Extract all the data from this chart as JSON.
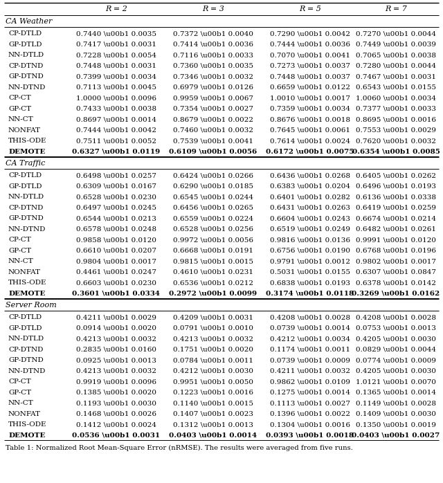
{
  "col_headers": [
    "",
    "R = 2",
    "R = 3",
    "R = 5",
    "R = 7"
  ],
  "sections": [
    {
      "name": "CA Weather",
      "rows": [
        [
          "CP-DTLD",
          "0.7440 \\u00b1 0.0035",
          "0.7372 \\u00b1 0.0040",
          "0.7290 \\u00b1 0.0042",
          "0.7270 \\u00b1 0.0044"
        ],
        [
          "GP-DTLD",
          "0.7417 \\u00b1 0.0031",
          "0.7414 \\u00b1 0.0036",
          "0.7444 \\u00b1 0.0036",
          "0.7449 \\u00b1 0.0039"
        ],
        [
          "NN-DTLD",
          "0.7228 \\u00b1 0.0054",
          "0.7116 \\u00b1 0.0033",
          "0.7070 \\u00b1 0.0041",
          "0.7065 \\u00b1 0.0038"
        ],
        [
          "CP-DTND",
          "0.7448 \\u00b1 0.0031",
          "0.7360 \\u00b1 0.0035",
          "0.7273 \\u00b1 0.0037",
          "0.7280 \\u00b1 0.0044"
        ],
        [
          "GP-DTND",
          "0.7399 \\u00b1 0.0034",
          "0.7346 \\u00b1 0.0032",
          "0.7448 \\u00b1 0.0037",
          "0.7467 \\u00b1 0.0031"
        ],
        [
          "NN-DTND",
          "0.7113 \\u00b1 0.0045",
          "0.6979 \\u00b1 0.0126",
          "0.6659 \\u00b1 0.0122",
          "0.6543 \\u00b1 0.0155"
        ],
        [
          "CP-CT",
          "1.0000 \\u00b1 0.0096",
          "0.9959 \\u00b1 0.0067",
          "1.0010 \\u00b1 0.0017",
          "1.0060 \\u00b1 0.0034"
        ],
        [
          "GP-CT",
          "0.7433 \\u00b1 0.0038",
          "0.7354 \\u00b1 0.0027",
          "0.7359 \\u00b1 0.0034",
          "0.7377 \\u00b1 0.0033"
        ],
        [
          "NN-CT",
          "0.8697 \\u00b1 0.0014",
          "0.8679 \\u00b1 0.0022",
          "0.8676 \\u00b1 0.0018",
          "0.8695 \\u00b1 0.0016"
        ],
        [
          "NONFAT",
          "0.7444 \\u00b1 0.0042",
          "0.7460 \\u00b1 0.0032",
          "0.7645 \\u00b1 0.0061",
          "0.7553 \\u00b1 0.0029"
        ],
        [
          "THIS-ODE",
          "0.7511 \\u00b1 0.0052",
          "0.7539 \\u00b1 0.0041",
          "0.7614 \\u00b1 0.0024",
          "0.7620 \\u00b1 0.0032"
        ],
        [
          "DEMOTE",
          "0.6327 \\u00b1 0.0119",
          "0.6109 \\u00b1 0.0056",
          "0.6172 \\u00b1 0.0075",
          "0.6354 \\u00b1 0.0085"
        ]
      ],
      "bold_row": "DEMOTE"
    },
    {
      "name": "CA Traffic",
      "rows": [
        [
          "CP-DTLD",
          "0.6498 \\u00b1 0.0257",
          "0.6424 \\u00b1 0.0266",
          "0.6436 \\u00b1 0.0268",
          "0.6405 \\u00b1 0.0262"
        ],
        [
          "GP-DTLD",
          "0.6309 \\u00b1 0.0167",
          "0.6290 \\u00b1 0.0185",
          "0.6383 \\u00b1 0.0204",
          "0.6496 \\u00b1 0.0193"
        ],
        [
          "NN-DTLD",
          "0.6528 \\u00b1 0.0230",
          "0.6545 \\u00b1 0.0244",
          "0.6401 \\u00b1 0.0282",
          "0.6136 \\u00b1 0.0338"
        ],
        [
          "CP-DTND",
          "0.6497 \\u00b1 0.0245",
          "0.6456 \\u00b1 0.0265",
          "0.6431 \\u00b1 0.0263",
          "0.6419 \\u00b1 0.0259"
        ],
        [
          "GP-DTND",
          "0.6544 \\u00b1 0.0213",
          "0.6559 \\u00b1 0.0224",
          "0.6604 \\u00b1 0.0243",
          "0.6674 \\u00b1 0.0214"
        ],
        [
          "NN-DTND",
          "0.6578 \\u00b1 0.0248",
          "0.6528 \\u00b1 0.0256",
          "0.6519 \\u00b1 0.0249",
          "0.6482 \\u00b1 0.0261"
        ],
        [
          "CP-CT",
          "0.9858 \\u00b1 0.0120",
          "0.9972 \\u00b1 0.0056",
          "0.9816 \\u00b1 0.0136",
          "0.9991 \\u00b1 0.0120"
        ],
        [
          "GP-CT",
          "0.6610 \\u00b1 0.0207",
          "0.6668 \\u00b1 0.0191",
          "0.6756 \\u00b1 0.0190",
          "0.6768 \\u00b1 0.0196"
        ],
        [
          "NN-CT",
          "0.9804 \\u00b1 0.0017",
          "0.9815 \\u00b1 0.0015",
          "0.9791 \\u00b1 0.0012",
          "0.9802 \\u00b1 0.0017"
        ],
        [
          "NONFAT",
          "0.4461 \\u00b1 0.0247",
          "0.4610 \\u00b1 0.0231",
          "0.5031 \\u00b1 0.0155",
          "0.6307 \\u00b1 0.0847"
        ],
        [
          "THIS-ODE",
          "0.6603 \\u00b1 0.0230",
          "0.6536 \\u00b1 0.0212",
          "0.6838 \\u00b1 0.0193",
          "0.6378 \\u00b1 0.0142"
        ],
        [
          "DEMOTE",
          "0.3601 \\u00b1 0.0334",
          "0.2972 \\u00b1 0.0099",
          "0.3174 \\u00b1 0.0118",
          "0.3269 \\u00b1 0.0162"
        ]
      ],
      "bold_row": "DEMOTE"
    },
    {
      "name": "Server Room",
      "rows": [
        [
          "CP-DTLD",
          "0.4211 \\u00b1 0.0029",
          "0.4209 \\u00b1 0.0031",
          "0.4208 \\u00b1 0.0028",
          "0.4208 \\u00b1 0.0028"
        ],
        [
          "GP-DTLD",
          "0.0914 \\u00b1 0.0020",
          "0.0791 \\u00b1 0.0010",
          "0.0739 \\u00b1 0.0014",
          "0.0753 \\u00b1 0.0013"
        ],
        [
          "NN-DTLD",
          "0.4213 \\u00b1 0.0032",
          "0.4213 \\u00b1 0.0032",
          "0.4212 \\u00b1 0.0034",
          "0.4205 \\u00b1 0.0030"
        ],
        [
          "CP-DTND",
          "0.2835 \\u00b1 0.0160",
          "0.1751 \\u00b1 0.0020",
          "0.1174 \\u00b1 0.0011",
          "0.0829 \\u00b1 0.0044"
        ],
        [
          "GP-DTND",
          "0.0925 \\u00b1 0.0013",
          "0.0784 \\u00b1 0.0011",
          "0.0739 \\u00b1 0.0009",
          "0.0774 \\u00b1 0.0009"
        ],
        [
          "NN-DTND",
          "0.4213 \\u00b1 0.0032",
          "0.4212 \\u00b1 0.0030",
          "0.4211 \\u00b1 0.0032",
          "0.4205 \\u00b1 0.0030"
        ],
        [
          "CP-CT",
          "0.9919 \\u00b1 0.0096",
          "0.9951 \\u00b1 0.0050",
          "0.9862 \\u00b1 0.0109",
          "1.0121 \\u00b1 0.0070"
        ],
        [
          "GP-CT",
          "0.1385 \\u00b1 0.0020",
          "0.1223 \\u00b1 0.0016",
          "0.1275 \\u00b1 0.0014",
          "0.1365 \\u00b1 0.0014"
        ],
        [
          "NN-CT",
          "0.1193 \\u00b1 0.0030",
          "0.1140 \\u00b1 0.0015",
          "0.1113 \\u00b1 0.0027",
          "0.1149 \\u00b1 0.0028"
        ],
        [
          "NONFAT",
          "0.1468 \\u00b1 0.0026",
          "0.1407 \\u00b1 0.0023",
          "0.1396 \\u00b1 0.0022",
          "0.1409 \\u00b1 0.0030"
        ],
        [
          "THIS-ODE",
          "0.1412 \\u00b1 0.0024",
          "0.1312 \\u00b1 0.0013",
          "0.1304 \\u00b1 0.0016",
          "0.1350 \\u00b1 0.0019"
        ],
        [
          "DEMOTE",
          "0.0536 \\u00b1 0.0031",
          "0.0403 \\u00b1 0.0014",
          "0.0393 \\u00b1 0.0018",
          "0.0403 \\u00b1 0.0027"
        ]
      ],
      "bold_row": "DEMOTE"
    }
  ],
  "fig_width": 6.4,
  "fig_height": 6.98,
  "caption": "Table 1: Normalized Root Mean-Square Error (nRMSE). The results were averaged from five runs."
}
